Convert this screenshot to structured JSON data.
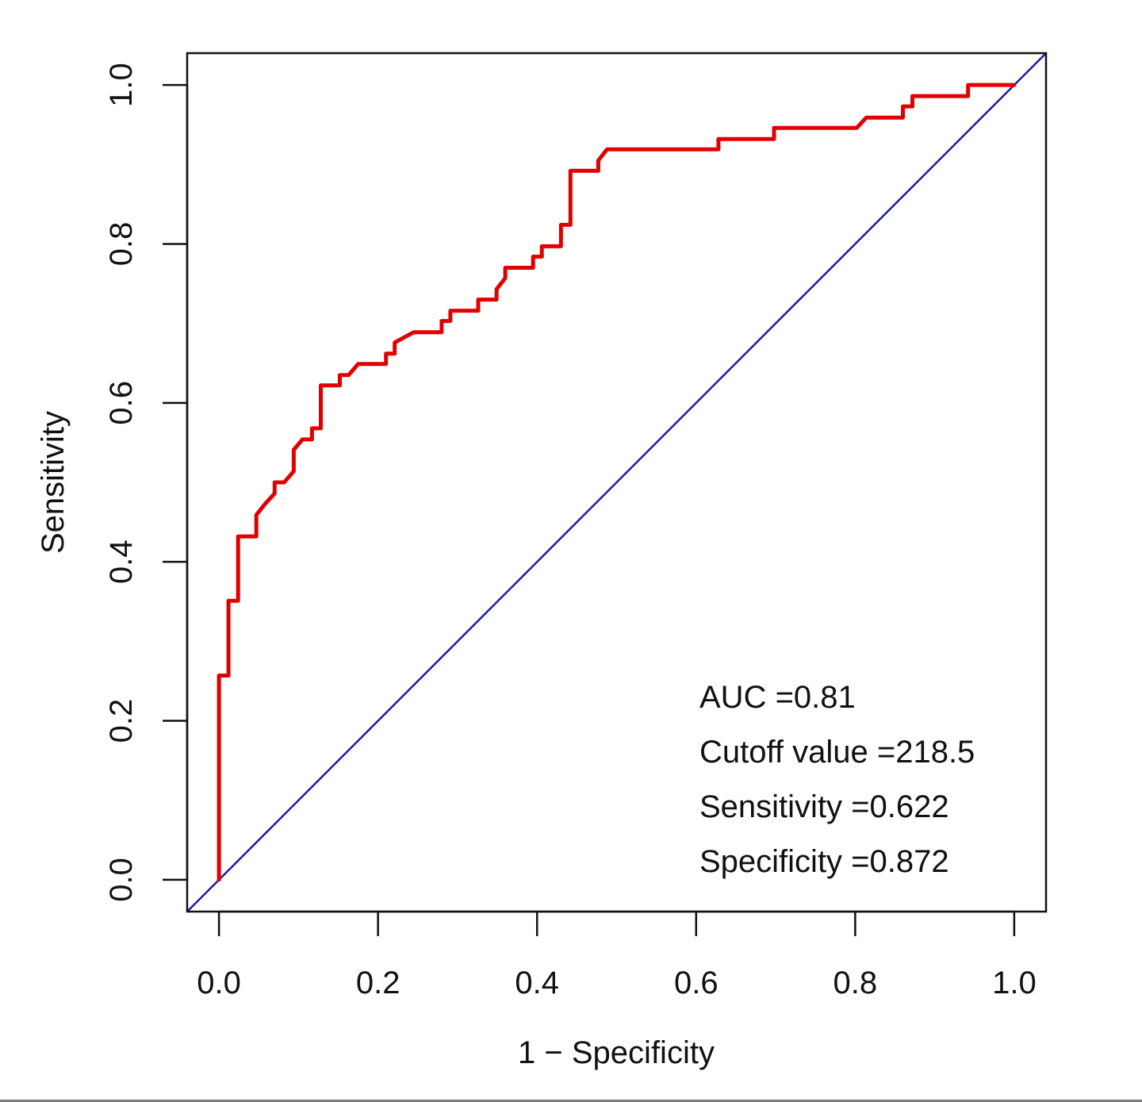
{
  "chart_data": {
    "type": "line",
    "xlabel": "1 − Specificity",
    "ylabel": "Sensitivity",
    "xlim": [
      -0.04,
      1.04
    ],
    "ylim": [
      -0.04,
      1.04
    ],
    "x_ticks": [
      {
        "value": 0.0,
        "label": "0.0"
      },
      {
        "value": 0.2,
        "label": "0.2"
      },
      {
        "value": 0.4,
        "label": "0.4"
      },
      {
        "value": 0.6,
        "label": "0.6"
      },
      {
        "value": 0.8,
        "label": "0.8"
      },
      {
        "value": 1.0,
        "label": "1.0"
      }
    ],
    "y_ticks": [
      {
        "value": 0.0,
        "label": "0.0"
      },
      {
        "value": 0.2,
        "label": "0.2"
      },
      {
        "value": 0.4,
        "label": "0.4"
      },
      {
        "value": 0.6,
        "label": "0.6"
      },
      {
        "value": 0.8,
        "label": "0.8"
      },
      {
        "value": 1.0,
        "label": "1.0"
      }
    ],
    "grid": false,
    "series": [
      {
        "color": "#e00000",
        "x": [
          0.0,
          0.0,
          0.012,
          0.012,
          0.024,
          0.024,
          0.047,
          0.047,
          0.058,
          0.07,
          0.07,
          0.082,
          0.094,
          0.094,
          0.105,
          0.117,
          0.117,
          0.128,
          0.128,
          0.152,
          0.152,
          0.163,
          0.175,
          0.21,
          0.21,
          0.221,
          0.221,
          0.245,
          0.28,
          0.28,
          0.291,
          0.291,
          0.326,
          0.326,
          0.349,
          0.349,
          0.36,
          0.36,
          0.395,
          0.395,
          0.406,
          0.406,
          0.43,
          0.43,
          0.442,
          0.442,
          0.477,
          0.477,
          0.488,
          0.628,
          0.628,
          0.698,
          0.698,
          0.802,
          0.814,
          0.86,
          0.86,
          0.872,
          0.872,
          0.942,
          0.942,
          1.0
        ],
        "y": [
          0.0,
          0.257,
          0.257,
          0.351,
          0.351,
          0.432,
          0.432,
          0.459,
          0.473,
          0.486,
          0.5,
          0.5,
          0.514,
          0.541,
          0.554,
          0.554,
          0.568,
          0.568,
          0.622,
          0.622,
          0.635,
          0.635,
          0.649,
          0.649,
          0.662,
          0.662,
          0.676,
          0.689,
          0.689,
          0.703,
          0.703,
          0.716,
          0.716,
          0.73,
          0.73,
          0.743,
          0.757,
          0.77,
          0.77,
          0.784,
          0.784,
          0.797,
          0.797,
          0.824,
          0.824,
          0.892,
          0.892,
          0.905,
          0.919,
          0.919,
          0.932,
          0.932,
          0.946,
          0.946,
          0.959,
          0.959,
          0.973,
          0.973,
          0.986,
          0.986,
          1.0,
          1.0
        ]
      }
    ],
    "reference_line": {
      "color": "#1c1c9c",
      "x": [
        -0.04,
        1.04
      ],
      "y": [
        -0.04,
        1.04
      ]
    },
    "annotations": [
      "AUC =0.81",
      "Cutoff value =218.5",
      "Sensitivity =0.622",
      "Specificity =0.872"
    ]
  }
}
